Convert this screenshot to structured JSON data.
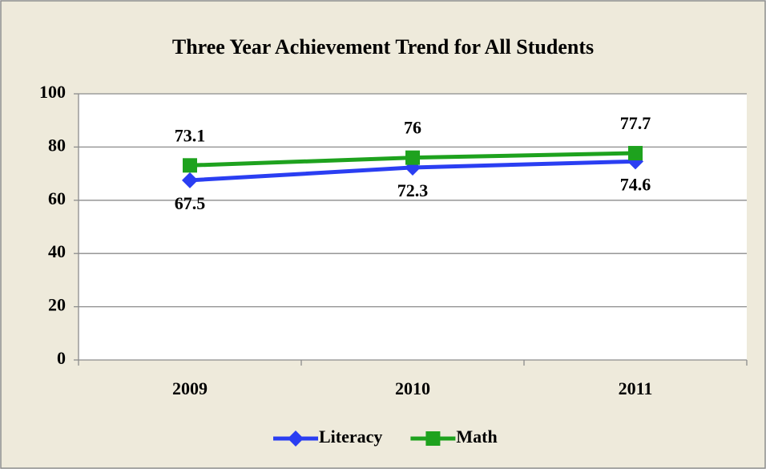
{
  "chart_data": {
    "type": "line",
    "title": "Three Year Achievement Trend for All Students",
    "categories": [
      "2009",
      "2010",
      "2011"
    ],
    "series": [
      {
        "name": "Literacy",
        "color": "#2a3ef2",
        "marker": "diamond",
        "values": [
          67.5,
          72.3,
          74.6
        ]
      },
      {
        "name": "Math",
        "color": "#1ea21e",
        "marker": "square",
        "values": [
          73.1,
          76,
          77.7
        ]
      }
    ],
    "ylim": [
      0,
      100
    ],
    "yticks": [
      0,
      20,
      40,
      60,
      80,
      100
    ],
    "grid": true,
    "legend": "bottom"
  }
}
